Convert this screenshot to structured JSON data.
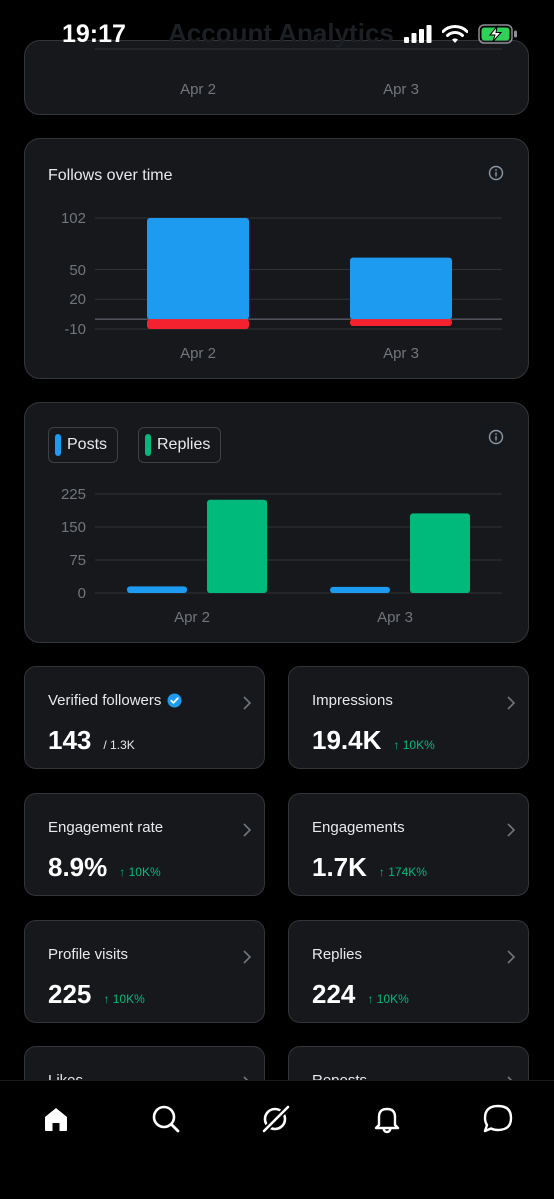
{
  "status_bar": {
    "time": "19:17",
    "header_title": "Account Analytics"
  },
  "top_card": {
    "tick_labels": [
      "Apr 2",
      "Apr 3"
    ]
  },
  "follows_card": {
    "title": "Follows over time",
    "y_ticks": [
      "102",
      "50",
      "20",
      "-10"
    ],
    "x_labels": [
      "Apr 2",
      "Apr 3"
    ]
  },
  "posts_card": {
    "legend": [
      {
        "label": "Posts"
      },
      {
        "label": "Replies"
      }
    ],
    "y_ticks": [
      "225",
      "150",
      "75",
      "0"
    ],
    "x_labels": [
      "Apr 2",
      "Apr 3"
    ]
  },
  "chart_data": [
    {
      "type": "bar",
      "title": "Follows over time",
      "categories": [
        "Apr 2",
        "Apr 3"
      ],
      "series": [
        {
          "values": [
            102,
            62
          ],
          "color": "#1d9bf0"
        },
        {
          "values": [
            -10,
            -7
          ],
          "color": "#f4212e"
        }
      ],
      "ylim": [
        -10,
        102
      ],
      "grid": true
    },
    {
      "type": "bar",
      "categories": [
        "Apr 2",
        "Apr 3"
      ],
      "series": [
        {
          "name": "Posts",
          "values": [
            15,
            14
          ],
          "color": "#1d9bf0"
        },
        {
          "name": "Replies",
          "values": [
            212,
            181
          ],
          "color": "#00ba7c"
        }
      ],
      "ylim": [
        0,
        225
      ],
      "grid": true,
      "legend": "top-left"
    }
  ],
  "stats": {
    "verified_followers": {
      "label": "Verified followers",
      "value": "143",
      "sub": "/ 1.3K"
    },
    "impressions": {
      "label": "Impressions",
      "value": "19.4K",
      "delta": "↑ 10K%"
    },
    "engagement_rate": {
      "label": "Engagement rate",
      "value": "8.9%",
      "delta": "↑ 10K%"
    },
    "engagements": {
      "label": "Engagements",
      "value": "1.7K",
      "delta": "↑ 174K%"
    },
    "profile_visits": {
      "label": "Profile visits",
      "value": "225",
      "delta": "↑ 10K%"
    },
    "replies": {
      "label": "Replies",
      "value": "224",
      "delta": "↑ 10K%"
    },
    "likes": {
      "label": "Likes"
    },
    "reposts": {
      "label": "Reposts"
    }
  },
  "tabs": [
    {
      "icon": "home-icon"
    },
    {
      "icon": "search-icon"
    },
    {
      "icon": "grok-icon"
    },
    {
      "icon": "bell-icon"
    },
    {
      "icon": "messages-icon"
    }
  ],
  "colors": {
    "accent": "#1d9bf0",
    "negative": "#f4212e",
    "positive": "#00ba7c",
    "card_bg": "#16181c"
  }
}
